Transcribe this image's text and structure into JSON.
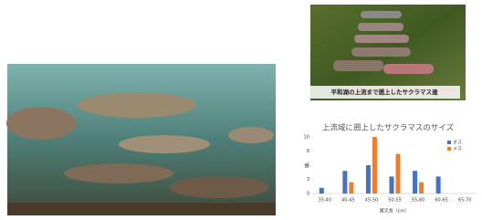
{
  "slide": {
    "caption": "平和湖の上流まで遡上したサクラマス達"
  },
  "chart_data": {
    "type": "bar",
    "title": "上流域に遡上したサクラマスのサイズ",
    "categories": [
      "35-40",
      "40-45",
      "45-50",
      "50-55",
      "55-60",
      "60-65",
      "65-70"
    ],
    "series": [
      {
        "name": "オス",
        "color": "#4472c4",
        "values": [
          1,
          4,
          5,
          3,
          4,
          3,
          0
        ]
      },
      {
        "name": "メス",
        "color": "#ed7d31",
        "values": [
          0,
          2,
          10,
          7,
          2,
          0,
          0
        ]
      }
    ],
    "ylim": [
      0,
      10
    ],
    "yticks": [
      0,
      {
        "value": 2.5,
        "label": "3"
      },
      5,
      {
        "value": 7.5,
        "label": "8"
      },
      10
    ],
    "ylabel": "数",
    "xlabel": "尾叉長（cm）",
    "legend": "upper right",
    "grid": false
  }
}
